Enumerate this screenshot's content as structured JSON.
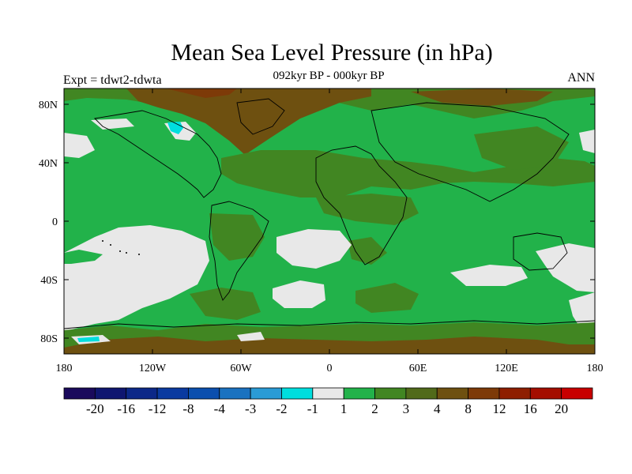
{
  "title": "Mean Sea Level Pressure (in hPa)",
  "subtitle": "092kyr BP - 000kyr BP",
  "left_label": "Expt = tdwt2-tdwta",
  "right_label": "ANN",
  "x_ticks": [
    "180",
    "120W",
    "60W",
    "0",
    "60E",
    "120E",
    "180"
  ],
  "y_ticks": [
    "80N",
    "40N",
    "0",
    "40S",
    "80S"
  ],
  "colorbar": {
    "labels": [
      "-20",
      "-16",
      "-12",
      "-8",
      "-4",
      "-3",
      "-2",
      "-1",
      "1",
      "2",
      "3",
      "4",
      "8",
      "12",
      "16",
      "20"
    ],
    "colors": [
      "#1a0a5c",
      "#0f1670",
      "#0c2888",
      "#0a3aa0",
      "#0b4fae",
      "#1a72c0",
      "#2a9bd6",
      "#00dede",
      "#e8e8e8",
      "#22b24a",
      "#418622",
      "#516a1a",
      "#6e5010",
      "#7d3a08",
      "#8e1e00",
      "#a40e00",
      "#c80000"
    ]
  },
  "colors": {
    "ocean_green": "#22b24a",
    "dark_green": "#418622",
    "olive": "#516a1a",
    "brown": "#6e5010",
    "light_gray": "#e8e8e8",
    "cyan": "#00dede",
    "blue": "#1a72c0"
  }
}
